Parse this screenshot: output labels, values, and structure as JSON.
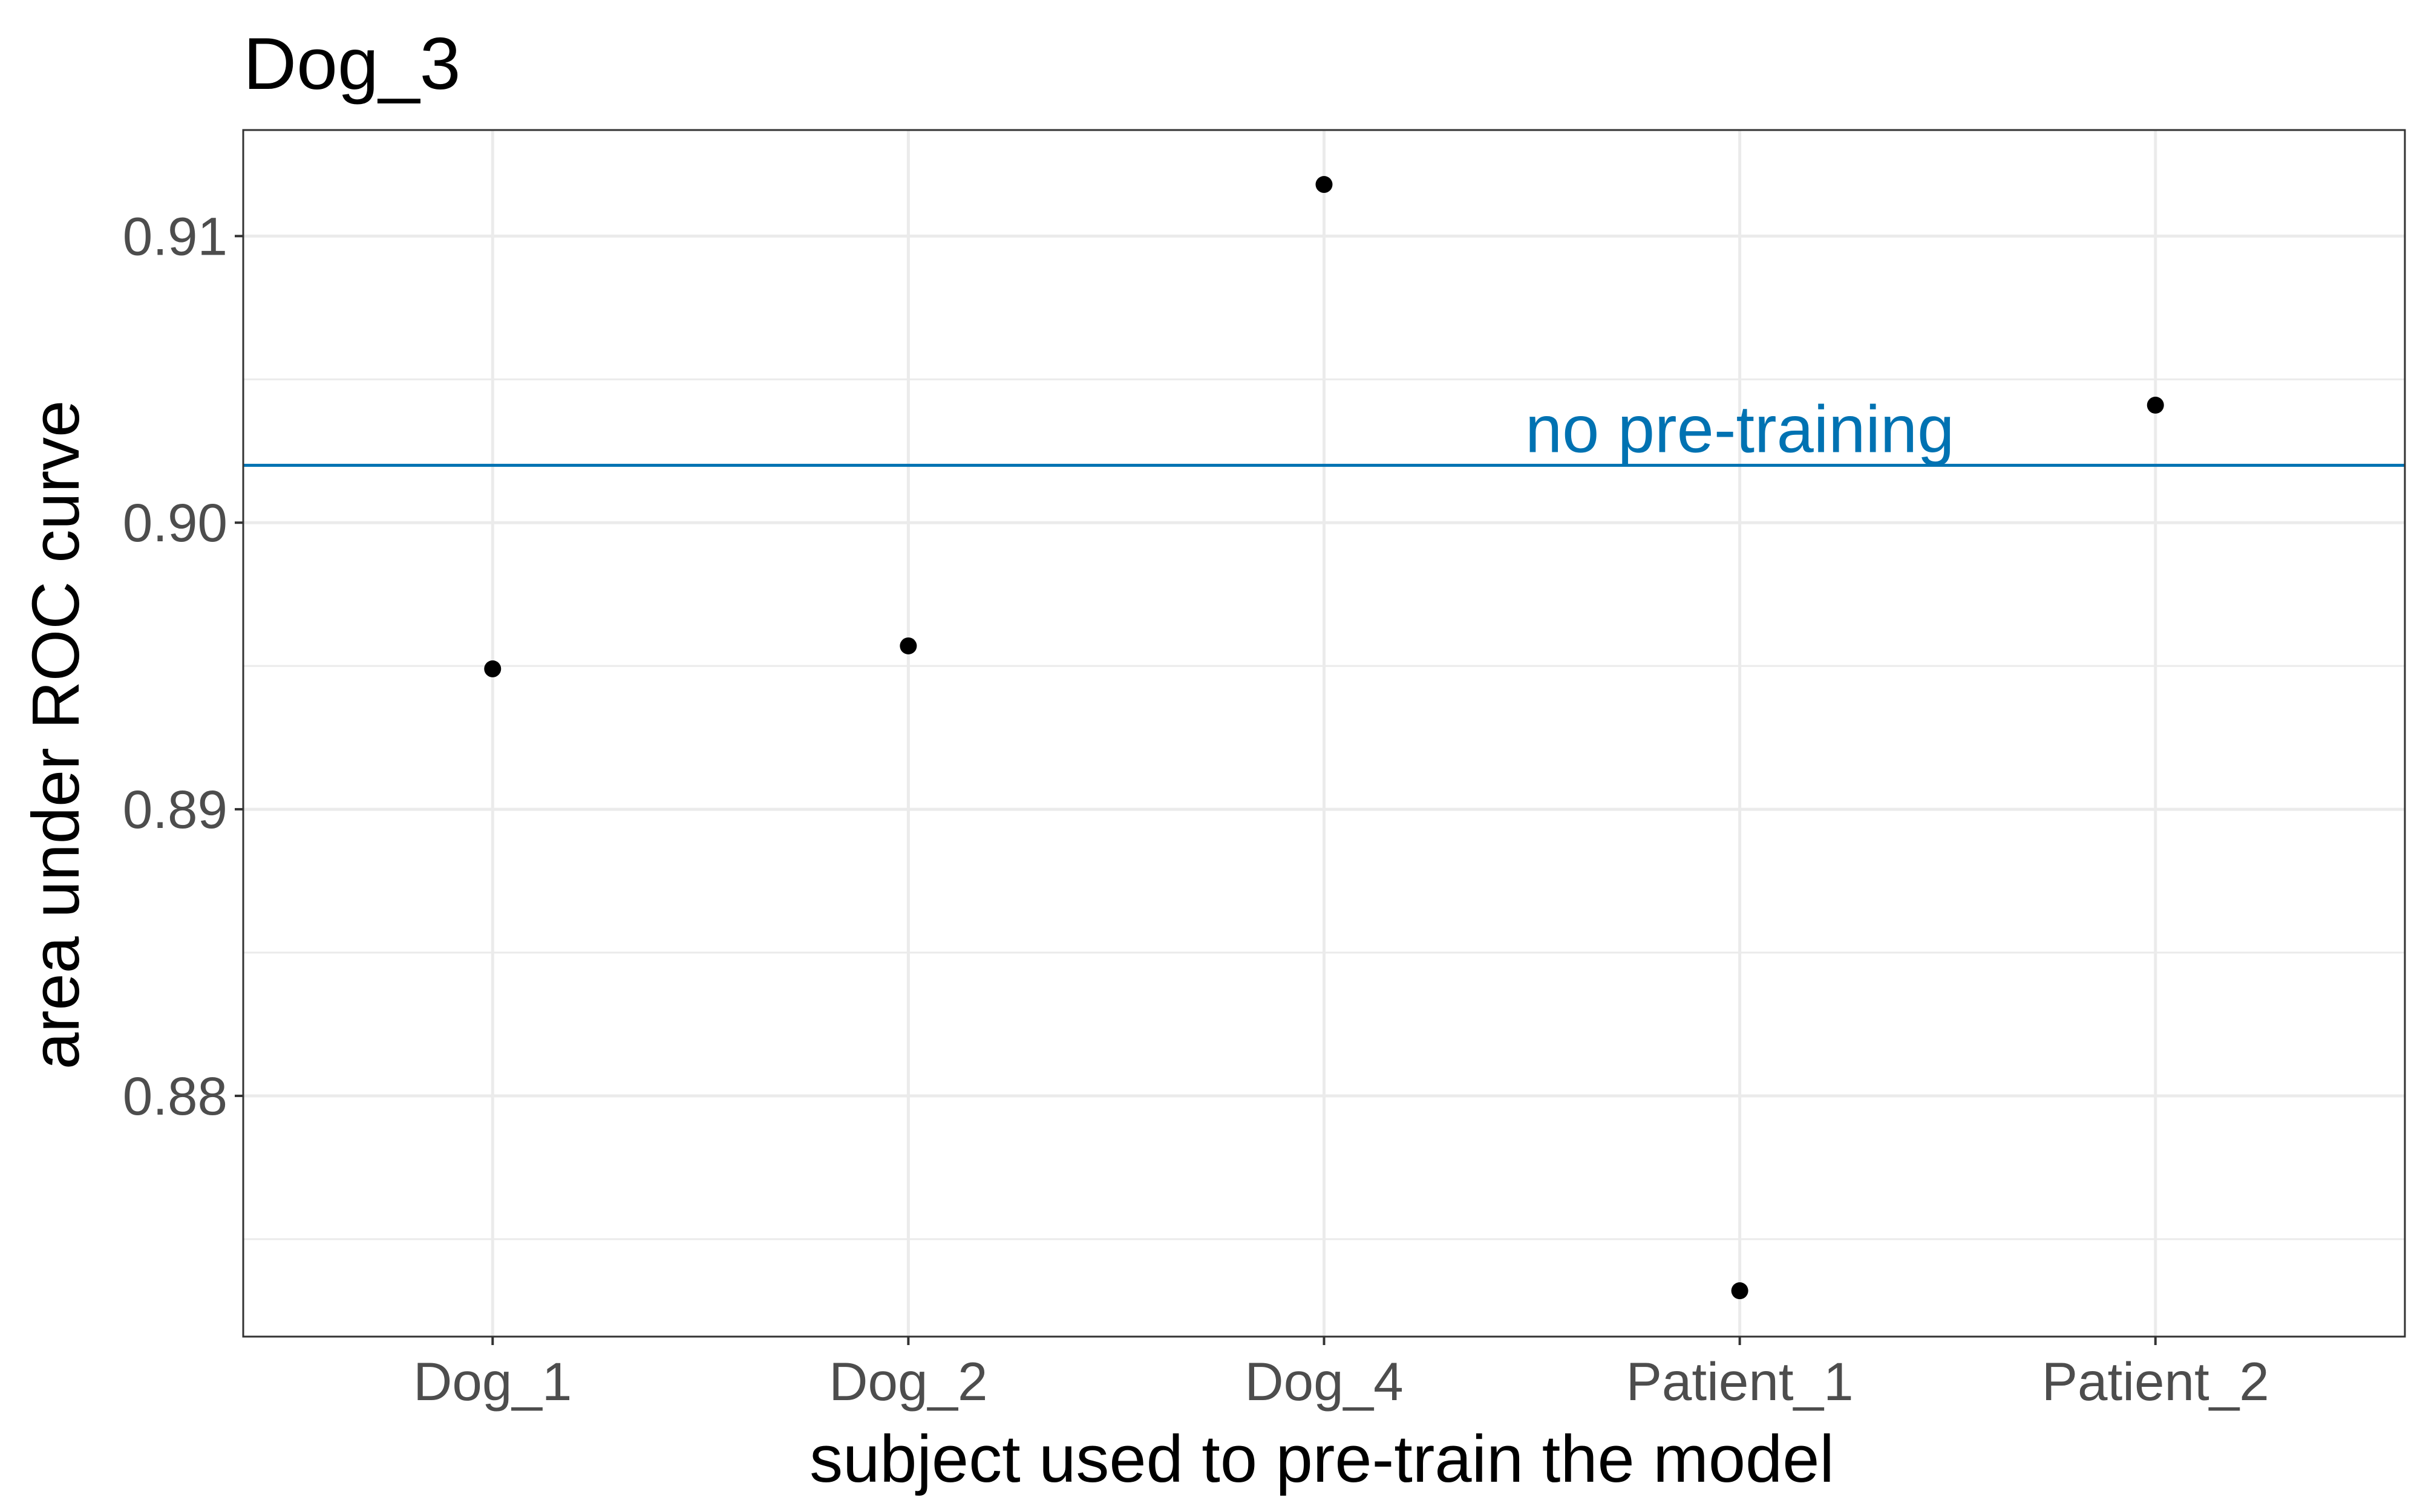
{
  "chart_data": {
    "type": "scatter",
    "title": "Dog_3",
    "xlabel": "subject used to pre-train the model",
    "ylabel": "area under ROC curve",
    "categories": [
      "Dog_1",
      "Dog_2",
      "Dog_4",
      "Patient_1",
      "Patient_2"
    ],
    "values": [
      0.8949,
      0.8957,
      0.9118,
      0.8732,
      0.9041
    ],
    "ylim": [
      0.8716,
      0.9137
    ],
    "yticks": [
      0.88,
      0.89,
      0.9,
      0.91
    ],
    "ytick_labels": [
      "0.88",
      "0.89",
      "0.90",
      "0.91"
    ],
    "grid": true,
    "reference_line": {
      "y": 0.902,
      "label": "no pre-training",
      "color": "#0072B2",
      "label_category": "Patient_1"
    },
    "point_color": "#000000"
  }
}
